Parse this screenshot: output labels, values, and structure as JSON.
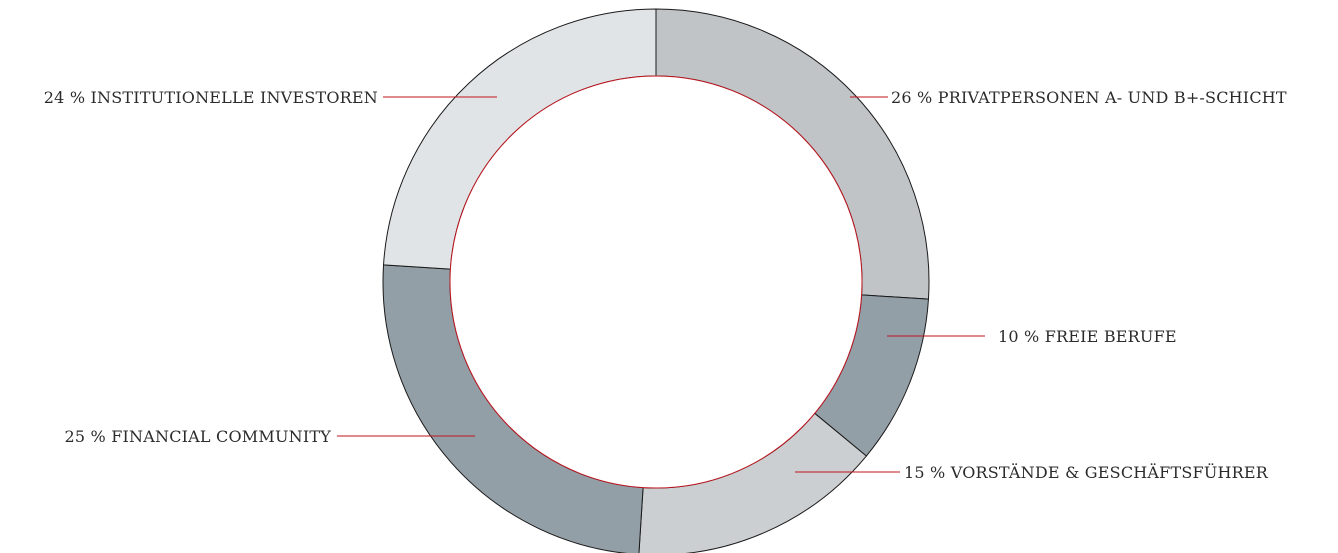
{
  "chart_data": {
    "type": "pie",
    "style": "donut",
    "slices": [
      {
        "value": 26,
        "label": "26 % PRIVATPERSONEN A- UND B+-SCHICHT",
        "color": "#c0c4c7"
      },
      {
        "value": 10,
        "label": "10 % FREIE BERUFE",
        "color": "#939fa6"
      },
      {
        "value": 15,
        "label": "15 % VORSTÄNDE & GESCHÄFTSFÜHRER",
        "color": "#cccfd2"
      },
      {
        "value": 25,
        "label": "25 % FINANCIAL COMMUNITY",
        "color": "#939fa6"
      },
      {
        "value": 24,
        "label": "24 % INSTITUTIONELLE INVESTOREN",
        "color": "#e1e4e6"
      }
    ],
    "start_angle": "12 o'clock",
    "direction": "clockwise",
    "inner_ring_color": "#c0141e",
    "leader_line_color": "#c0141e"
  }
}
